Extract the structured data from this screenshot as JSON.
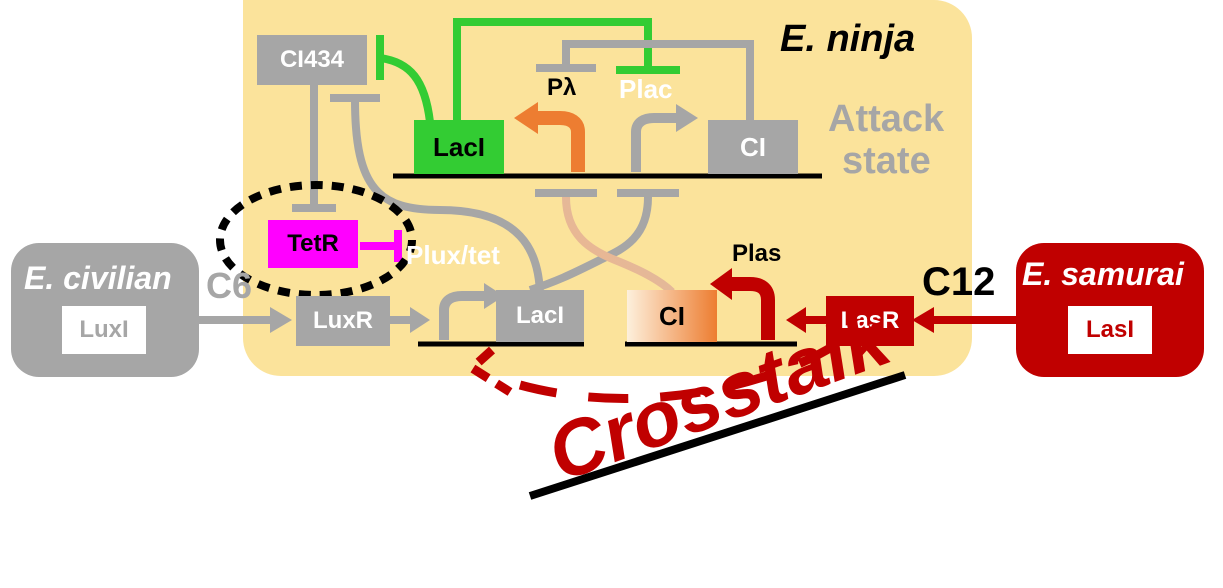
{
  "colors": {
    "ninja_bg": "#fbe39b",
    "gray": "#a6a6a6",
    "green": "#33cc33",
    "orange": "#ed7d31",
    "red": "#c00000",
    "magenta": "#ff00ff",
    "black": "#000000"
  },
  "cells": {
    "ninja": {
      "title": "E. ninja",
      "state_line1": "Attack",
      "state_line2": "state"
    },
    "civilian": {
      "title": "E. civilian",
      "gene": "LuxI"
    },
    "samurai": {
      "title": "E. samurai",
      "gene": "LasI"
    }
  },
  "signals": {
    "c6": "C6",
    "c12": "C12"
  },
  "genes": {
    "ci434": "CI434",
    "laci_top": "LacI",
    "ci_top": "CI",
    "tetr": "TetR",
    "luxr": "LuxR",
    "laci_bottom": "LacI",
    "ci_bottom": "CI",
    "lasr": "LasR"
  },
  "promoters": {
    "plambda": "Pλ",
    "plac": "Plac",
    "plux_tet": "Plux/tet",
    "plas": "Plas"
  },
  "crosstalk": "Crosstalk"
}
